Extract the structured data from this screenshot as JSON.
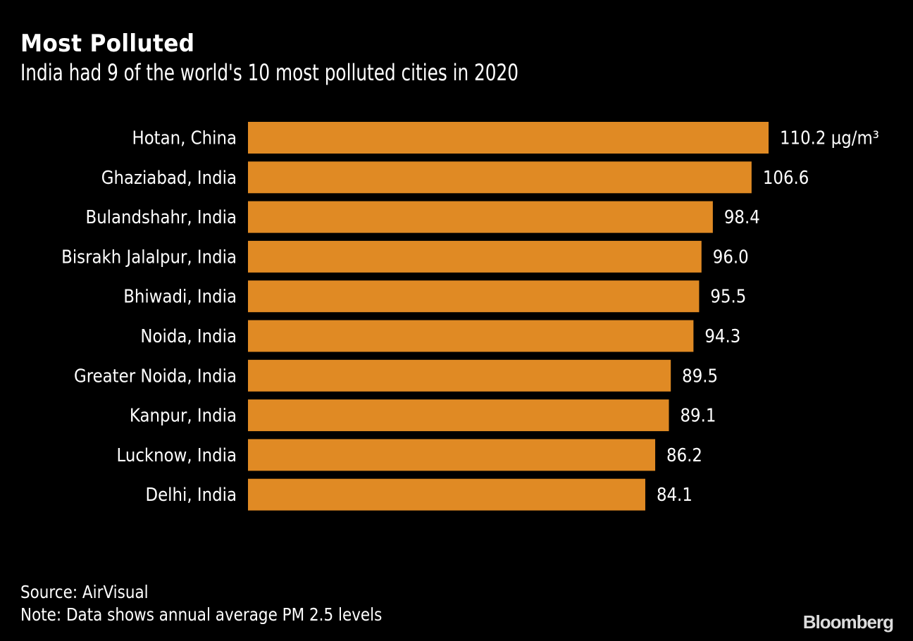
{
  "chart_data": {
    "type": "bar",
    "orientation": "horizontal",
    "title": "Most Polluted",
    "subtitle": "India had 9 of the world's 10 most polluted cities in 2020",
    "categories": [
      "Hotan, China",
      "Ghaziabad, India",
      "Bulandshahr, India",
      "Bisrakh Jalalpur, India",
      "Bhiwadi, India",
      "Noida, India",
      "Greater Noida, India",
      "Kanpur, India",
      "Lucknow, India",
      "Delhi, India"
    ],
    "values": [
      110.2,
      106.6,
      98.4,
      96.0,
      95.5,
      94.3,
      89.5,
      89.1,
      86.2,
      84.1
    ],
    "value_labels": [
      "110.2 µg/m³",
      "106.6",
      "98.4",
      "96.0",
      "95.5",
      "94.3",
      "89.5",
      "89.1",
      "86.2",
      "84.1"
    ],
    "unit": "µg/m³",
    "xlabel": "",
    "ylabel": "",
    "xlim": [
      0,
      110.2
    ],
    "grid": false,
    "bar_color": "#E08A24",
    "source": "Source: AirVisual",
    "note": "Note: Data shows annual average PM 2.5 levels"
  },
  "brand": "Bloomberg"
}
